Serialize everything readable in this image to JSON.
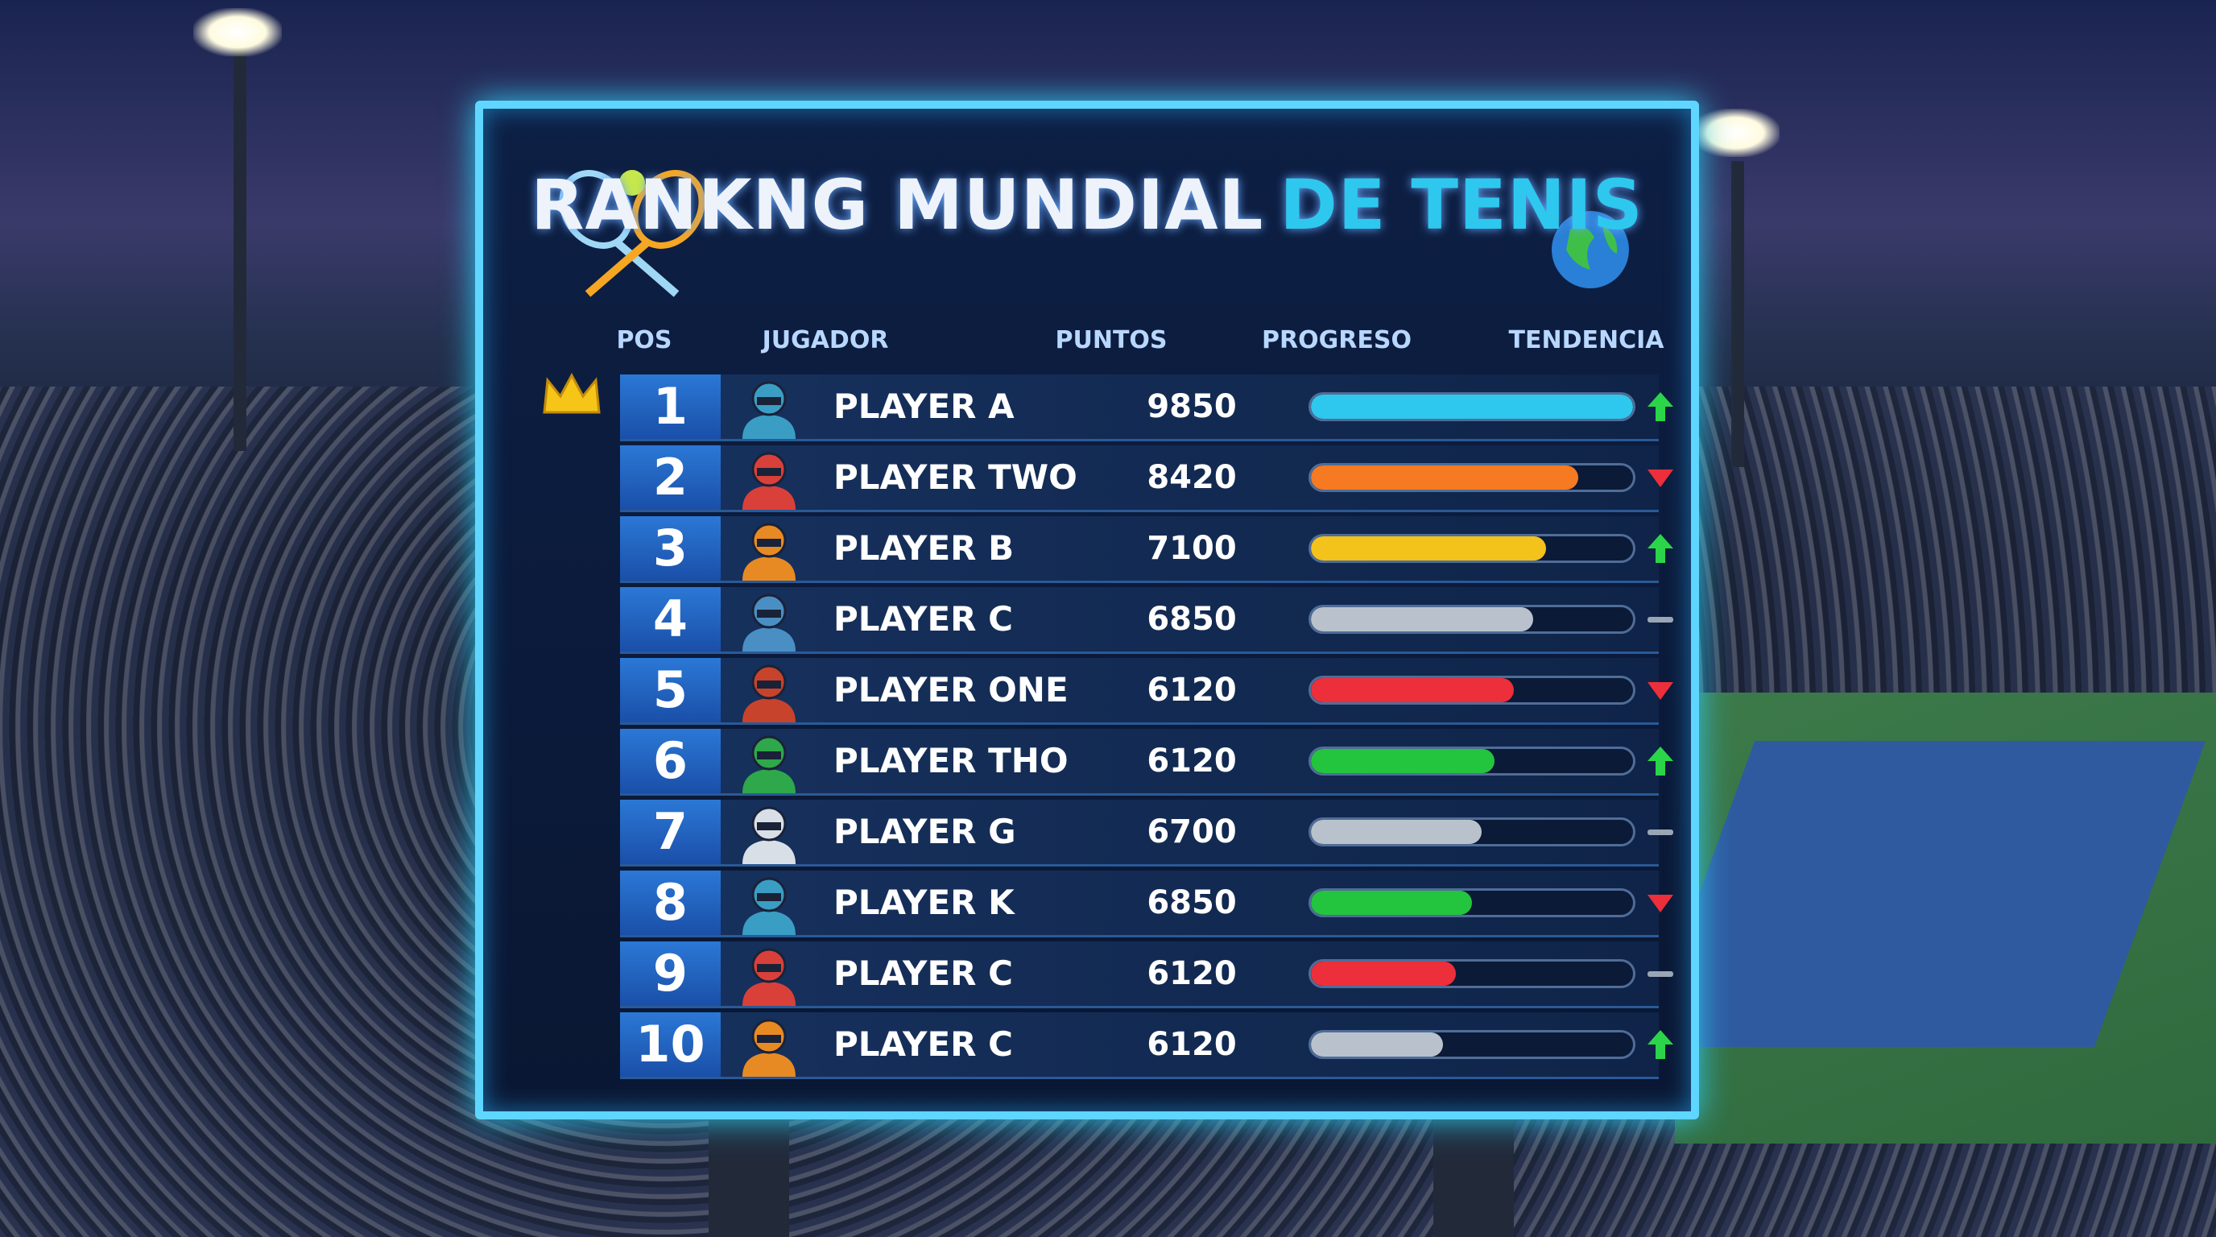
{
  "title": {
    "main": "RANKNG MUNDIAL",
    "accent": "DE TENIS"
  },
  "table": {
    "header": [
      "POS",
      "JUGADOR",
      "PUNTOS",
      "PROGRESO",
      "TENDENCIA"
    ],
    "rows": [
      {
        "pos": "1",
        "player": "PLAYER A",
        "points": "9850",
        "progress": 100,
        "bar_color": "#2ec8ee",
        "trend": "up",
        "avatar_color": "#3a9ec4"
      },
      {
        "pos": "2",
        "player": "PLAYER TWO",
        "points": "8420",
        "progress": 83,
        "bar_color": "#f57a22",
        "trend": "down",
        "avatar_color": "#d9403a"
      },
      {
        "pos": "3",
        "player": "PLAYER B",
        "points": "7100",
        "progress": 73,
        "bar_color": "#f3c21b",
        "trend": "up",
        "avatar_color": "#e88a24"
      },
      {
        "pos": "4",
        "player": "PLAYER C",
        "points": "6850",
        "progress": 69,
        "bar_color": "#b9c2cc",
        "trend": "flat",
        "avatar_color": "#4a8fc4"
      },
      {
        "pos": "5",
        "player": "PLAYER ONE",
        "points": "6120",
        "progress": 63,
        "bar_color": "#ec2f3a",
        "trend": "down",
        "avatar_color": "#c7432c"
      },
      {
        "pos": "6",
        "player": "PLAYER THO",
        "points": "6120",
        "progress": 57,
        "bar_color": "#23c43e",
        "trend": "up",
        "avatar_color": "#2ea84a"
      },
      {
        "pos": "7",
        "player": "PLAYER G",
        "points": "6700",
        "progress": 53,
        "bar_color": "#b9c2cc",
        "trend": "flat",
        "avatar_color": "#d8dfe6"
      },
      {
        "pos": "8",
        "player": "PLAYER K",
        "points": "6850",
        "progress": 50,
        "bar_color": "#23c43e",
        "trend": "down",
        "avatar_color": "#3a9ec4"
      },
      {
        "pos": "9",
        "player": "PLAYER C",
        "points": "6120",
        "progress": 45,
        "bar_color": "#ec2f3a",
        "trend": "flat",
        "avatar_color": "#d9403a"
      },
      {
        "pos": "10",
        "player": "PLAYER C",
        "points": "6120",
        "progress": 41,
        "bar_color": "#b9c2cc",
        "trend": "up",
        "avatar_color": "#e88a24"
      }
    ]
  }
}
